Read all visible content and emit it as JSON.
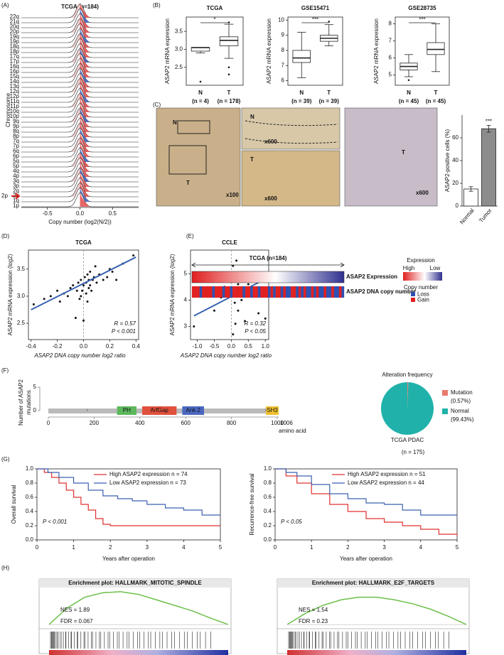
{
  "panels": [
    "(A)",
    "(B)",
    "(C)",
    "(D)",
    "(E)",
    "(F)",
    "(G)",
    "(H)"
  ],
  "images": {
    "labels": [
      "N",
      "T",
      "x100",
      "N",
      "x600",
      "T",
      "x600",
      "T",
      "x600"
    ]
  },
  "chart_data": [
    {
      "type": "ridgeline",
      "title": "TCGA (n=184)",
      "ylabel": "Chromosome",
      "xlabel": "Copy number (log2(N/2))",
      "categories": [
        "22q",
        "21q",
        "20q",
        "20p",
        "19q",
        "19p",
        "18q",
        "18p",
        "17q",
        "17p",
        "16q",
        "16p",
        "15q",
        "14q",
        "13q",
        "12q",
        "12p",
        "11q",
        "11p",
        "10q",
        "10p",
        "9q",
        "9p",
        "8q",
        "8p",
        "7q",
        "7p",
        "6q",
        "6p",
        "5q",
        "5p",
        "4q",
        "4p",
        "3q",
        "3p",
        "2q",
        "2p",
        "1q",
        "1p"
      ],
      "xlim": [
        -0.9,
        0.9
      ],
      "xticks": [
        -0.5,
        {
          "value": 0,
          "label": "0.0"
        },
        0.5
      ],
      "annotation": "2p"
    },
    {
      "type": "box",
      "title": "TCGA",
      "ylabel": "ASAP2 mRNA expression",
      "categories": [
        "N",
        "T"
      ],
      "n_labels": [
        "(n = 4)",
        "(n = 178)"
      ],
      "ylim": [
        2.0,
        3.9
      ],
      "yticks": [
        2.5,
        {
          "value": 3,
          "label": "3.0"
        },
        3.5
      ],
      "significance": "*",
      "boxes": [
        {
          "whisker_low": 2.9,
          "q1": 2.95,
          "median": 3.05,
          "q3": 3.05,
          "whisker_high": 3.05,
          "outliers": [
            2.1
          ]
        },
        {
          "whisker_low": 2.75,
          "q1": 3.1,
          "median": 3.25,
          "q3": 3.35,
          "whisker_high": 3.7,
          "outliers": [
            2.5,
            2.3,
            3.75
          ]
        }
      ]
    },
    {
      "type": "box",
      "title": "GSE15471",
      "ylabel": "ASAP2 mRNA expression",
      "categories": [
        "N",
        "T"
      ],
      "n_labels": [
        "(n = 39)",
        "(n = 39)"
      ],
      "ylim": [
        5.7,
        10.2
      ],
      "yticks": [
        6,
        7,
        8,
        9,
        10
      ],
      "significance": "***",
      "boxes": [
        {
          "whisker_low": 6.2,
          "q1": 7.2,
          "median": 7.5,
          "q3": 8.0,
          "whisker_high": 9.2,
          "outliers": []
        },
        {
          "whisker_low": 8.3,
          "q1": 8.6,
          "median": 8.8,
          "q3": 9.0,
          "whisker_high": 9.7,
          "outliers": [
            9.9
          ]
        }
      ]
    },
    {
      "type": "box",
      "title": "GSE28735",
      "ylabel": "ASAP2 mRNA expression",
      "categories": [
        "N",
        "T"
      ],
      "n_labels": [
        "(n = 45)",
        "(n = 45)"
      ],
      "ylim": [
        4.4,
        8.4
      ],
      "yticks": [
        5,
        6,
        7,
        8
      ],
      "significance": "***",
      "boxes": [
        {
          "whisker_low": 4.9,
          "q1": 5.3,
          "median": 5.5,
          "q3": 5.7,
          "whisker_high": 6.2,
          "outliers": [
            4.7
          ]
        },
        {
          "whisker_low": 5.2,
          "q1": 6.2,
          "median": 6.5,
          "q3": 6.9,
          "whisker_high": 8.0,
          "outliers": []
        }
      ]
    },
    {
      "type": "bar",
      "ylabel": "ASAP2-positive cells (%)",
      "categories": [
        "Normal",
        "Tumor"
      ],
      "values": [
        15,
        68
      ],
      "errors": [
        2,
        3
      ],
      "colors": [
        "#ffffff",
        "#8c8c8c"
      ],
      "ylim": [
        0,
        80
      ],
      "yticks": [
        0,
        20,
        40,
        60
      ],
      "significance": "***"
    },
    {
      "type": "scatter",
      "title": "TCGA",
      "ylabel": "ASAP2 mRNA expression (log2)",
      "xlabel": "ASAP2 DNA copy number log2 ratio",
      "xlim": [
        -0.42,
        0.42
      ],
      "xticks": [
        -0.4,
        -0.2,
        {
          "value": 0,
          "label": "0.0"
        },
        0.2,
        0.4
      ],
      "ylim": [
        2.2,
        3.85
      ],
      "yticks": [
        2.5,
        {
          "value": 3,
          "label": "3.0"
        },
        3.5
      ],
      "x": [
        -0.38,
        -0.3,
        -0.25,
        -0.2,
        -0.18,
        -0.15,
        -0.12,
        -0.1,
        -0.08,
        -0.05,
        -0.04,
        -0.03,
        -0.02,
        -0.01,
        0.0,
        0.01,
        0.02,
        0.02,
        0.03,
        0.04,
        0.05,
        0.05,
        0.06,
        0.07,
        0.08,
        0.1,
        0.12,
        0.15,
        0.18,
        0.2,
        0.22,
        0.25,
        0.3,
        0.38,
        -0.06,
        0.0,
        0.03,
        0.09,
        -0.02,
        0.04
      ],
      "y": [
        2.85,
        2.95,
        3.0,
        3.1,
        2.9,
        3.05,
        3.0,
        3.15,
        3.2,
        3.1,
        3.25,
        2.95,
        3.3,
        3.1,
        3.2,
        3.35,
        3.25,
        3.05,
        3.4,
        3.3,
        3.2,
        3.45,
        3.1,
        3.3,
        3.35,
        3.25,
        3.4,
        3.3,
        3.35,
        3.5,
        3.45,
        3.3,
        3.6,
        3.75,
        2.6,
        2.55,
        2.9,
        3.55,
        3.0,
        3.15
      ],
      "fit_x": [
        -0.4,
        0.4
      ],
      "fit_y": [
        2.75,
        3.72
      ],
      "fit_color": "#3a62b0",
      "stats": [
        "R = 0.57",
        "P < 0.001"
      ]
    },
    {
      "type": "scatter",
      "title": "CCLE",
      "ylabel": "ASAP2 mRNA expression (log2)",
      "xlabel": "ASAP2 DNA copy number log2 ratio",
      "xlim": [
        -1.2,
        1.1
      ],
      "xticks": [
        {
          "value": -1,
          "label": "-1.0"
        },
        -0.5,
        {
          "value": 0,
          "label": "0.0"
        },
        0.5,
        {
          "value": 1,
          "label": "1.0"
        }
      ],
      "ylim": [
        2.5,
        5.9
      ],
      "yticks": [
        3,
        4,
        5
      ],
      "x": [
        -1.1,
        -0.5,
        -0.3,
        -0.2,
        -0.1,
        -0.05,
        0.0,
        0.05,
        0.1,
        0.1,
        0.15,
        0.2,
        0.2,
        0.25,
        0.3,
        0.35,
        0.4,
        0.5,
        0.7,
        0.8,
        1.0,
        0.05,
        0.12,
        0.18,
        0.3
      ],
      "y": [
        3.0,
        3.6,
        4.1,
        4.5,
        4.8,
        5.0,
        4.3,
        5.3,
        4.9,
        3.9,
        5.5,
        4.6,
        3.6,
        4.8,
        4.0,
        4.3,
        3.2,
        4.6,
        4.7,
        3.5,
        3.3,
        2.7,
        3.1,
        4.4,
        5.0
      ],
      "fit_x": [
        -1.1,
        1.0
      ],
      "fit_y": [
        3.4,
        4.8
      ],
      "fit_color": "#3a62b0",
      "stats": [
        "R = 0.32",
        "P < 0.05"
      ]
    },
    {
      "type": "heatmap",
      "title": "TCGA (n=184)",
      "rows": [
        "ASAP2 Expression",
        "ASAP2 DNA copy number"
      ],
      "legend": {
        "expression_title": "Expression",
        "high": "High",
        "low": "Low",
        "copy_title": "Copy number",
        "loss": "Loss",
        "gain": "Gain"
      },
      "gain_color": "#e02020",
      "loss_color": "#3050b0",
      "copy_number": [
        1,
        1,
        1,
        -1,
        1,
        1,
        1,
        1,
        -1,
        1,
        1,
        1,
        -1,
        1,
        1,
        -1,
        1,
        1,
        1,
        1,
        -1,
        1,
        1,
        -1,
        1,
        1,
        -1,
        1,
        1,
        1,
        -1,
        1,
        -1,
        1,
        1,
        -1,
        1,
        -1,
        -1,
        1,
        1,
        -1,
        1,
        -1,
        1,
        -1,
        -1,
        1,
        -1,
        1,
        -1,
        -1,
        1,
        -1,
        -1,
        1,
        -1,
        -1,
        1,
        -1
      ]
    },
    {
      "type": "lollipop",
      "ylabel": [
        "Number of ASAP2",
        "mutations"
      ],
      "ylim": [
        0,
        5
      ],
      "yticks": [
        0,
        5
      ],
      "xlim": [
        0,
        1006
      ],
      "xticks": [
        0,
        200,
        400,
        600,
        800,
        1000
      ],
      "length": 1006,
      "xlabel": "amino acid",
      "domains": [
        {
          "name": "PH",
          "start": 300,
          "end": 385,
          "color": "#5cb85c"
        },
        {
          "name": "ArfGap",
          "start": 410,
          "end": 560,
          "color": "#e0503c"
        },
        {
          "name": "Ank 2",
          "start": 585,
          "end": 680,
          "color": "#4a68c0"
        },
        {
          "name": "SH3",
          "start": 950,
          "end": 1006,
          "color": "#f0c030"
        }
      ],
      "mutations": {
        "positions": [
          170,
          950
        ],
        "counts": [
          1,
          1
        ]
      }
    },
    {
      "type": "pie",
      "title": "Alteration frequency",
      "labels": [
        "Mutation",
        "Normal"
      ],
      "values": [
        0.57,
        99.43
      ],
      "value_labels": [
        "(0.57%)",
        "(99.43%)"
      ],
      "colors": [
        "#e87a70",
        "#20b2aa"
      ],
      "caption": "TCGA PDAC",
      "n_label": "(n = 175)"
    },
    {
      "type": "survival",
      "ylabel": "Overall survival",
      "xlabel": "Years after operation",
      "p_label": "P < 0.001",
      "xlim": [
        0,
        5
      ],
      "xticks": [
        0,
        1,
        2,
        3,
        4,
        5
      ],
      "ylim": [
        0,
        1
      ],
      "yticks": [
        {
          "value": 0,
          "label": "0.0"
        },
        0.2,
        0.4,
        0.6,
        0.8,
        {
          "value": 1,
          "label": "1.0"
        }
      ],
      "series": [
        {
          "name": "High ASAP2 expression n = 74",
          "color": "#e03030",
          "x": [
            0,
            0.2,
            0.4,
            0.6,
            0.8,
            1.0,
            1.2,
            1.4,
            1.6,
            1.8,
            2.0,
            5
          ],
          "y": [
            1,
            0.95,
            0.88,
            0.8,
            0.7,
            0.6,
            0.5,
            0.42,
            0.3,
            0.22,
            0.2,
            0.2
          ]
        },
        {
          "name": "Low ASAP2 expression n = 73",
          "color": "#3a62b0",
          "x": [
            0,
            0.3,
            0.6,
            1,
            1.4,
            1.8,
            2.2,
            2.6,
            3,
            3.5,
            4,
            4.5,
            5
          ],
          "y": [
            1,
            0.95,
            0.88,
            0.8,
            0.7,
            0.62,
            0.58,
            0.55,
            0.5,
            0.45,
            0.42,
            0.35,
            0.35
          ]
        }
      ]
    },
    {
      "type": "survival",
      "ylabel": "Recurrence-free survival",
      "xlabel": "Years after operation",
      "p_label": "P < 0.05",
      "xlim": [
        0,
        5
      ],
      "xticks": [
        0,
        1,
        2,
        3,
        4,
        5
      ],
      "ylim": [
        0,
        1
      ],
      "yticks": [
        {
          "value": 0,
          "label": "0.0"
        },
        0.2,
        0.4,
        0.6,
        0.8,
        {
          "value": 1,
          "label": "1.0"
        }
      ],
      "series": [
        {
          "name": "High ASAP2 expression n = 51",
          "color": "#e03030",
          "x": [
            0,
            0.3,
            0.6,
            1,
            1.5,
            2,
            2.5,
            3,
            3.5,
            4,
            4.5,
            5
          ],
          "y": [
            1,
            0.9,
            0.8,
            0.65,
            0.5,
            0.4,
            0.3,
            0.25,
            0.2,
            0.15,
            0.08,
            0.06
          ]
        },
        {
          "name": "Low ASAP2 expression n = 44",
          "color": "#3a62b0",
          "x": [
            0,
            0.3,
            0.6,
            1,
            1.5,
            2,
            2.5,
            3,
            3.5,
            4,
            4.5,
            5
          ],
          "y": [
            1,
            0.95,
            0.9,
            0.78,
            0.65,
            0.58,
            0.52,
            0.5,
            0.42,
            0.35,
            0.35,
            0.35
          ]
        }
      ]
    },
    {
      "type": "gsea",
      "title": "Enrichment plot: HALLMARK_MITOTIC_SPINDLE",
      "nes": "NES = 1.89",
      "fdr": "FDR = 0.067",
      "ylim": [
        -0.05,
        0.65
      ],
      "values": [
        0,
        0.3,
        0.5,
        0.58,
        0.6,
        0.55,
        0.45,
        0.35,
        0.25,
        0.12,
        0
      ],
      "color": "#6cc04a"
    },
    {
      "type": "gsea",
      "title": "Enrichment plot: HALLMARK_E2F_TARGETS",
      "nes": "NES = 1.54",
      "fdr": "FDR = 0.23",
      "ylim": [
        -0.05,
        0.65
      ],
      "values": [
        0,
        0.2,
        0.35,
        0.45,
        0.5,
        0.5,
        0.45,
        0.38,
        0.28,
        0.15,
        0
      ],
      "color": "#6cc04a"
    }
  ]
}
